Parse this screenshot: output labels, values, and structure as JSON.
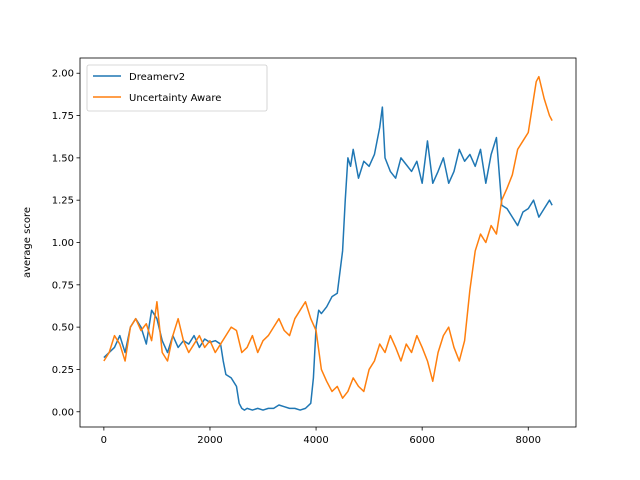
{
  "chart_data": {
    "type": "line",
    "title": "",
    "xlabel": "",
    "ylabel": "average score",
    "xlim": [
      -450,
      8900
    ],
    "ylim": [
      -0.09,
      2.09
    ],
    "xticks": [
      0,
      2000,
      4000,
      6000,
      8000
    ],
    "yticks": [
      0.0,
      0.25,
      0.5,
      0.75,
      1.0,
      1.25,
      1.5,
      1.75,
      2.0
    ],
    "grid": false,
    "legend": {
      "placement": "top-left"
    },
    "series": [
      {
        "name": "Dreamerv2",
        "color": "#1f77b4",
        "x": [
          0,
          200,
          300,
          400,
          500,
          600,
          700,
          800,
          900,
          1000,
          1100,
          1200,
          1300,
          1400,
          1500,
          1600,
          1700,
          1800,
          1900,
          2000,
          2100,
          2200,
          2250,
          2300,
          2400,
          2500,
          2550,
          2600,
          2650,
          2700,
          2800,
          2900,
          3000,
          3100,
          3200,
          3300,
          3400,
          3500,
          3600,
          3700,
          3800,
          3900,
          3950,
          4000,
          4050,
          4100,
          4200,
          4300,
          4400,
          4500,
          4550,
          4600,
          4650,
          4700,
          4800,
          4900,
          5000,
          5100,
          5200,
          5250,
          5300,
          5400,
          5500,
          5600,
          5700,
          5800,
          5900,
          6000,
          6100,
          6200,
          6300,
          6400,
          6500,
          6600,
          6700,
          6800,
          6900,
          7000,
          7100,
          7200,
          7300,
          7400,
          7500,
          7600,
          7700,
          7800,
          7900,
          8000,
          8100,
          8200,
          8300,
          8400,
          8450
        ],
        "y": [
          0.32,
          0.38,
          0.45,
          0.35,
          0.5,
          0.55,
          0.5,
          0.4,
          0.6,
          0.55,
          0.42,
          0.35,
          0.45,
          0.38,
          0.42,
          0.4,
          0.45,
          0.38,
          0.43,
          0.41,
          0.42,
          0.4,
          0.3,
          0.22,
          0.2,
          0.15,
          0.05,
          0.02,
          0.01,
          0.02,
          0.01,
          0.02,
          0.01,
          0.02,
          0.02,
          0.04,
          0.03,
          0.02,
          0.02,
          0.01,
          0.02,
          0.05,
          0.2,
          0.5,
          0.6,
          0.58,
          0.62,
          0.68,
          0.7,
          0.95,
          1.25,
          1.5,
          1.45,
          1.55,
          1.38,
          1.48,
          1.45,
          1.52,
          1.68,
          1.8,
          1.5,
          1.42,
          1.38,
          1.5,
          1.46,
          1.42,
          1.48,
          1.35,
          1.6,
          1.35,
          1.42,
          1.5,
          1.35,
          1.42,
          1.55,
          1.48,
          1.52,
          1.45,
          1.55,
          1.35,
          1.52,
          1.62,
          1.22,
          1.2,
          1.15,
          1.1,
          1.18,
          1.2,
          1.25,
          1.15,
          1.2,
          1.25,
          1.22
        ]
      },
      {
        "name": "Uncertainty Aware",
        "color": "#ff7f0e",
        "x": [
          0,
          100,
          200,
          300,
          400,
          500,
          600,
          700,
          800,
          900,
          1000,
          1100,
          1200,
          1300,
          1400,
          1500,
          1600,
          1700,
          1800,
          1900,
          2000,
          2100,
          2200,
          2300,
          2400,
          2500,
          2600,
          2700,
          2800,
          2900,
          3000,
          3100,
          3200,
          3300,
          3400,
          3500,
          3600,
          3700,
          3800,
          3900,
          4000,
          4100,
          4200,
          4300,
          4400,
          4500,
          4600,
          4700,
          4800,
          4900,
          5000,
          5100,
          5200,
          5300,
          5400,
          5500,
          5600,
          5700,
          5800,
          5900,
          6000,
          6100,
          6200,
          6300,
          6400,
          6500,
          6600,
          6700,
          6800,
          6900,
          7000,
          7100,
          7200,
          7300,
          7400,
          7500,
          7600,
          7700,
          7800,
          7900,
          8000,
          8100,
          8150,
          8200,
          8300,
          8400,
          8450
        ],
        "y": [
          0.3,
          0.35,
          0.45,
          0.4,
          0.3,
          0.5,
          0.55,
          0.48,
          0.52,
          0.42,
          0.65,
          0.35,
          0.3,
          0.45,
          0.55,
          0.42,
          0.35,
          0.4,
          0.45,
          0.38,
          0.42,
          0.35,
          0.4,
          0.45,
          0.5,
          0.48,
          0.35,
          0.38,
          0.45,
          0.35,
          0.42,
          0.45,
          0.5,
          0.55,
          0.48,
          0.45,
          0.55,
          0.6,
          0.65,
          0.55,
          0.48,
          0.25,
          0.18,
          0.12,
          0.15,
          0.08,
          0.12,
          0.2,
          0.15,
          0.12,
          0.25,
          0.3,
          0.4,
          0.35,
          0.45,
          0.38,
          0.3,
          0.4,
          0.35,
          0.45,
          0.38,
          0.3,
          0.18,
          0.35,
          0.45,
          0.5,
          0.38,
          0.3,
          0.42,
          0.72,
          0.95,
          1.05,
          1.0,
          1.1,
          1.05,
          1.25,
          1.32,
          1.4,
          1.55,
          1.6,
          1.65,
          1.85,
          1.95,
          1.98,
          1.85,
          1.75,
          1.72
        ]
      }
    ]
  }
}
